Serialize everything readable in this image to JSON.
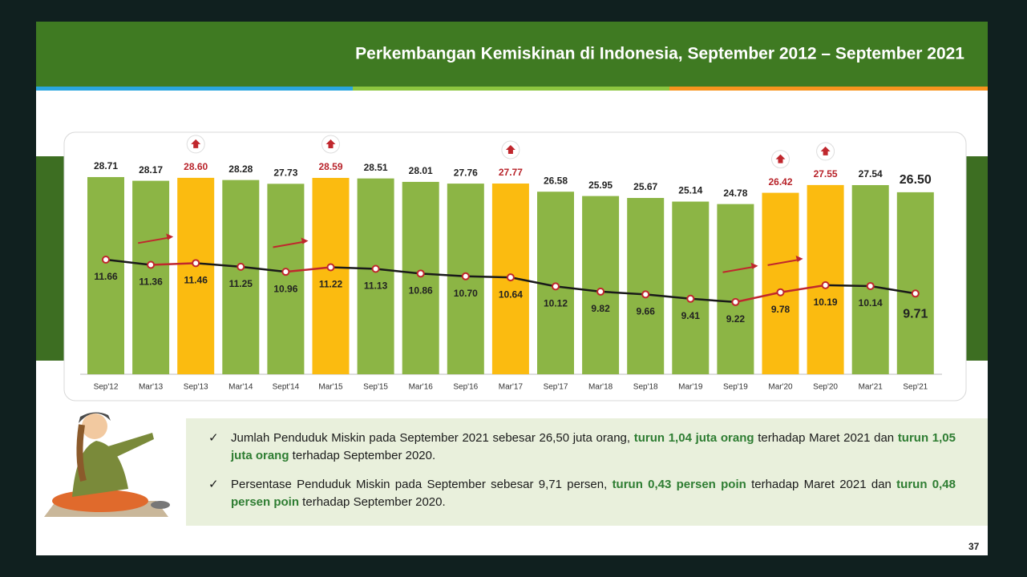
{
  "chart_data": {
    "type": "bar-line",
    "title": "Perkembangan Kemiskinan di Indonesia, September 2012 – September 2021",
    "categories": [
      "Sep'12",
      "Mar'13",
      "Sep'13",
      "Mar'14",
      "Sept'14",
      "Mar'15",
      "Sep'15",
      "Mar'16",
      "Sep'16",
      "Mar'17",
      "Sep'17",
      "Mar'18",
      "Sep'18",
      "Mar'19",
      "Sep'19",
      "Mar'20",
      "Sep'20",
      "Mar'21",
      "Sep'21"
    ],
    "series": [
      {
        "type": "bar",
        "color": "#8cb545",
        "highlight_color": "#fbbb10",
        "label_highlight_color": "#b8232a",
        "values": [
          28.71,
          28.17,
          28.6,
          28.28,
          27.73,
          28.59,
          28.51,
          28.01,
          27.76,
          27.77,
          26.58,
          25.95,
          25.67,
          25.14,
          24.78,
          26.42,
          27.55,
          27.54,
          26.5
        ],
        "value_labels": [
          "28.71",
          "28.17",
          "28.60",
          "28.28",
          "27.73",
          "28.59",
          "28.51",
          "28.01",
          "27.76",
          "27.77",
          "26.58",
          "25.95",
          "25.67",
          "25.14",
          "24.78",
          "26.42",
          "27.55",
          "27.54",
          "26.50"
        ]
      },
      {
        "type": "line",
        "color": "#1a1a1a",
        "rise_color": "#c0272d",
        "values": [
          11.66,
          11.36,
          11.46,
          11.25,
          10.96,
          11.22,
          11.13,
          10.86,
          10.7,
          10.64,
          10.12,
          9.82,
          9.66,
          9.41,
          9.22,
          9.78,
          10.19,
          10.14,
          9.71
        ],
        "value_labels": [
          "11.66",
          "11.36",
          "11.46",
          "11.25",
          "10.96",
          "11.22",
          "11.13",
          "10.86",
          "10.70",
          "10.64",
          "10.12",
          "9.82",
          "9.66",
          "9.41",
          "9.22",
          "9.78",
          "10.19",
          "10.14",
          "9.71"
        ]
      }
    ]
  },
  "bullets": [
    [
      {
        "text": "Jumlah Penduduk Miskin pada September 2021 sebesar 26,50 juta orang, ",
        "highlight": false
      },
      {
        "text": "turun 1,04 juta orang",
        "highlight": true
      },
      {
        "text": " terhadap Maret 2021 dan ",
        "highlight": false
      },
      {
        "text": "turun 1,05 juta orang",
        "highlight": true
      },
      {
        "text": " terhadap September 2020.",
        "highlight": false
      }
    ],
    [
      {
        "text": "Persentase Penduduk Miskin pada September sebesar 9,71 persen, ",
        "highlight": false
      },
      {
        "text": "turun 0,43 persen poin",
        "highlight": true
      },
      {
        "text": " terhadap Maret 2021 dan ",
        "highlight": false
      },
      {
        "text": "turun 0,48 persen poin",
        "highlight": true
      },
      {
        "text": " terhadap September 2020.",
        "highlight": false
      }
    ]
  ],
  "page_number": "37"
}
